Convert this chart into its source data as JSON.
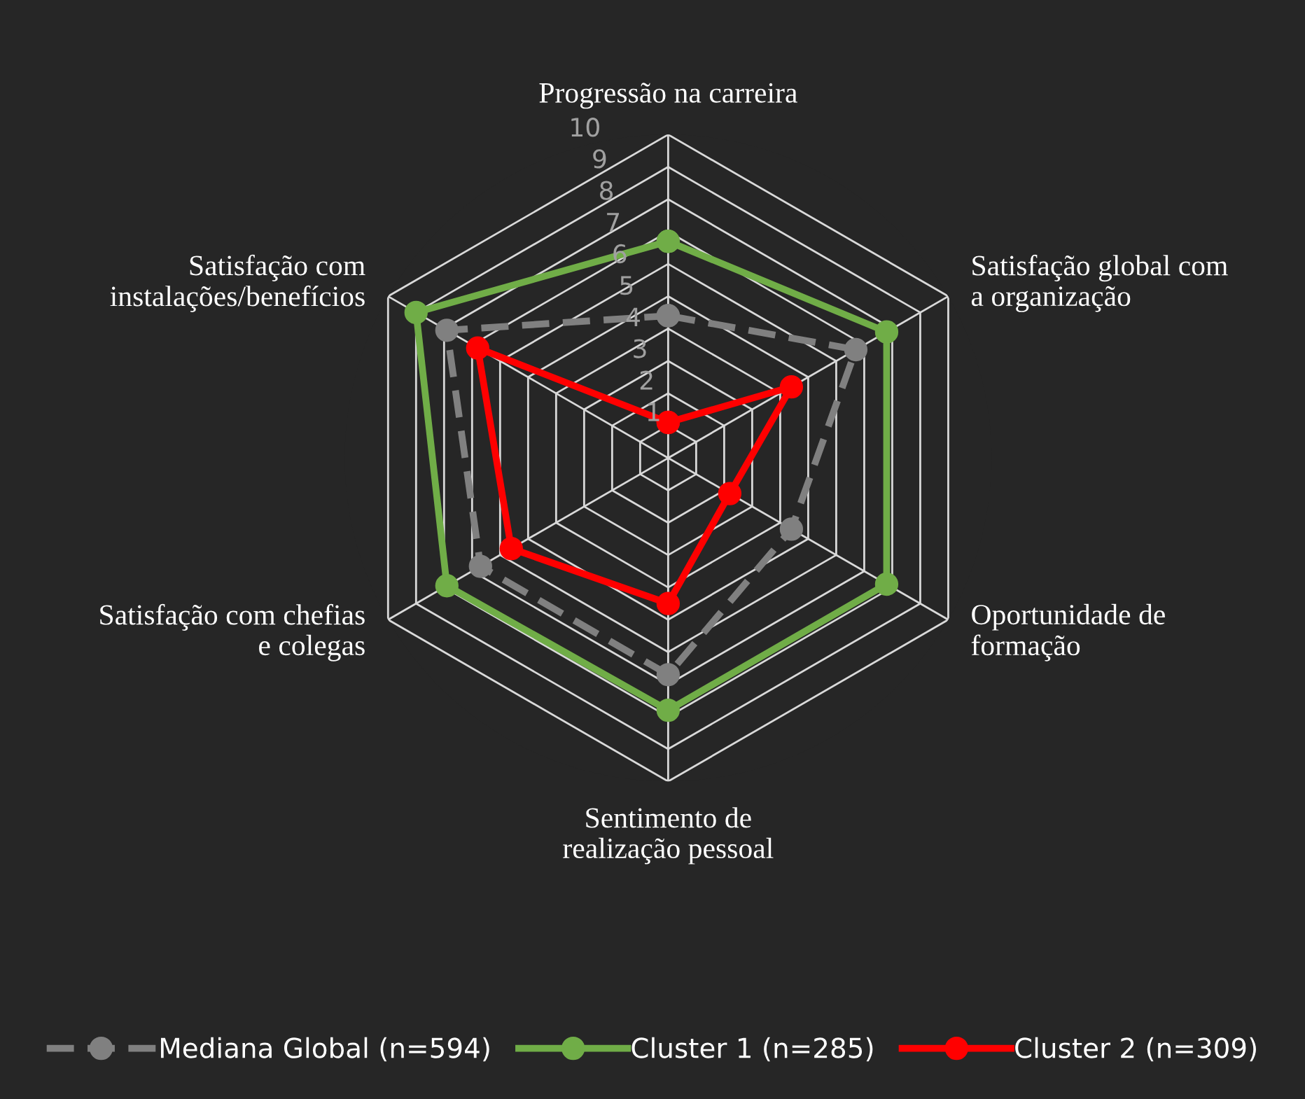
{
  "chart_data": {
    "type": "radar",
    "categories": [
      "Progressão na carreira",
      "Satisfação global com\na organização",
      "Oportunidade de\nformação",
      "Sentimento de\nrealização pessoal",
      "Satisfação com chefias\ne colegas",
      "Satisfação com\ninstalações/benefícios"
    ],
    "series": [
      {
        "name": "Mediana Global (n=594)",
        "color": "#808080",
        "line_style": "dashed",
        "values": [
          4.4,
          6.7,
          4.4,
          6.7,
          6.7,
          7.9
        ]
      },
      {
        "name": "Cluster 1 (n=285)",
        "color": "#70ad47",
        "line_style": "solid",
        "values": [
          6.7,
          7.8,
          7.8,
          7.8,
          7.9,
          9.0
        ]
      },
      {
        "name": "Cluster 2 (n=309)",
        "color": "#ff0000",
        "line_style": "solid",
        "values": [
          1.1,
          4.4,
          2.2,
          4.5,
          5.6,
          6.8
        ]
      }
    ],
    "ylim": [
      0,
      10
    ],
    "yticks": [
      1,
      2,
      3,
      4,
      5,
      6,
      7,
      8,
      9,
      10
    ],
    "marker": "circle",
    "grid": true,
    "legend": "bottom"
  }
}
